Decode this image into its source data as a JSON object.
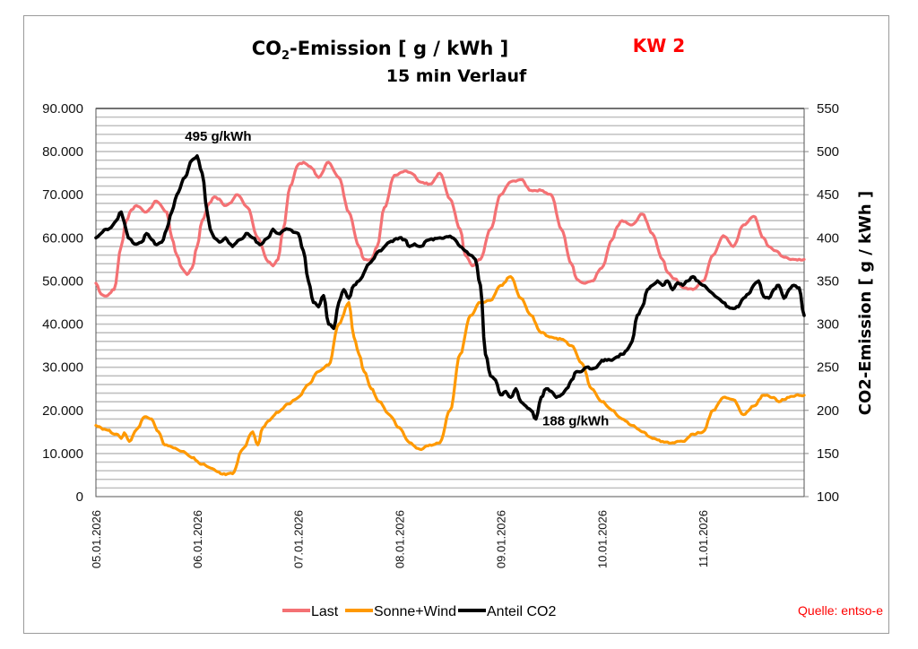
{
  "chart_data": {
    "type": "line",
    "title": "CO2-Emission [ g / kWh ]",
    "title_parts": {
      "prefix": "CO",
      "subscript": "2",
      "suffix": "-Emission [ g / kWh ]"
    },
    "week_label": "KW 2",
    "subtitle": "15 min Verlauf",
    "xlabel": "",
    "ylabel_left": "",
    "ylabel_right": "CO2-Emission [ g / kWh ]",
    "x_categories": [
      "05.01.2026",
      "06.01.2026",
      "07.01.2026",
      "08.01.2026",
      "09.01.2026",
      "10.01.2026",
      "11.01.2026"
    ],
    "x_range_days": [
      0,
      7
    ],
    "ylim_left": [
      0,
      90000
    ],
    "yticks_left": [
      "0",
      "10.000",
      "20.000",
      "30.000",
      "40.000",
      "50.000",
      "60.000",
      "70.000",
      "80.000",
      "90.000"
    ],
    "ylim_right": [
      100,
      550
    ],
    "yticks_right": [
      "100",
      "150",
      "200",
      "250",
      "300",
      "350",
      "400",
      "450",
      "500",
      "550"
    ],
    "grid": true,
    "legend_position": "bottom",
    "source": "Quelle: entso-e",
    "annotations": [
      {
        "text": "495 g/kWh",
        "series": "Anteil CO2",
        "x_day": 1.12,
        "value": 495
      },
      {
        "text": "188 g/kWh",
        "series": "Anteil CO2",
        "x_day": 4.6,
        "value": 188
      }
    ],
    "series": [
      {
        "name": "Last",
        "axis": "left",
        "color": "#f47174",
        "x_days": [
          0.0,
          0.05,
          0.1,
          0.18,
          0.25,
          0.3,
          0.35,
          0.4,
          0.5,
          0.6,
          0.7,
          0.75,
          0.8,
          0.85,
          0.9,
          0.95,
          1.0,
          1.05,
          1.12,
          1.17,
          1.22,
          1.27,
          1.32,
          1.4,
          1.5,
          1.6,
          1.7,
          1.75,
          1.8,
          1.85,
          1.92,
          2.0,
          2.05,
          2.12,
          2.2,
          2.3,
          2.4,
          2.5,
          2.6,
          2.65,
          2.72,
          2.78,
          2.85,
          2.95,
          3.05,
          3.12,
          3.2,
          3.3,
          3.4,
          3.5,
          3.6,
          3.65,
          3.72,
          3.8,
          3.9,
          4.0,
          4.1,
          4.2,
          4.3,
          4.4,
          4.5,
          4.6,
          4.7,
          4.75,
          4.82,
          4.9,
          5.0,
          5.1,
          5.15,
          5.2,
          5.3,
          5.4,
          5.5,
          5.6,
          5.65,
          5.72,
          5.8,
          5.9,
          6.0,
          6.1,
          6.2,
          6.3,
          6.4,
          6.5,
          6.6,
          6.65,
          6.72,
          6.8,
          6.9,
          7.0
        ],
        "values": [
          49500,
          47000,
          46500,
          48000,
          58000,
          64000,
          66500,
          67500,
          66000,
          68500,
          66000,
          60000,
          56000,
          53000,
          51500,
          53000,
          58000,
          64000,
          68000,
          69500,
          69000,
          67500,
          68000,
          70000,
          67000,
          60000,
          54500,
          53500,
          55000,
          62000,
          72000,
          77000,
          77500,
          76500,
          74000,
          77500,
          74000,
          66000,
          58000,
          55000,
          55000,
          58000,
          67000,
          74500,
          75500,
          75000,
          73000,
          72500,
          75000,
          69000,
          62000,
          56000,
          53500,
          55000,
          62000,
          70000,
          73000,
          73500,
          71000,
          71000,
          70000,
          62000,
          54000,
          50500,
          49500,
          50000,
          53000,
          59500,
          62500,
          64000,
          63000,
          65500,
          61000,
          55000,
          52000,
          50500,
          48500,
          48000,
          50000,
          56000,
          60500,
          58000,
          63000,
          65000,
          60000,
          58000,
          57000,
          55500,
          55000,
          55000
        ]
      },
      {
        "name": "Sonne+Wind",
        "axis": "left",
        "color": "#ff9900",
        "x_days": [
          0.0,
          0.1,
          0.2,
          0.28,
          0.32,
          0.4,
          0.45,
          0.5,
          0.55,
          0.62,
          0.68,
          0.75,
          0.8,
          0.88,
          0.95,
          1.0,
          1.1,
          1.2,
          1.3,
          1.4,
          1.5,
          1.55,
          1.62,
          1.7,
          1.75,
          1.8,
          1.9,
          2.0,
          2.1,
          2.2,
          2.3,
          2.4,
          2.5,
          2.55,
          2.6,
          2.65,
          2.72,
          2.8,
          2.9,
          3.0,
          3.1,
          3.2,
          3.3,
          3.4,
          3.5,
          3.6,
          3.7,
          3.8,
          3.9,
          4.0,
          4.1,
          4.2,
          4.3,
          4.4,
          4.5,
          4.6,
          4.7,
          4.8,
          4.9,
          5.0,
          5.1,
          5.2,
          5.3,
          5.4,
          5.5,
          5.6,
          5.7,
          5.8,
          5.9,
          6.0,
          6.1,
          6.2,
          6.3,
          6.4,
          6.5,
          6.6,
          6.7,
          6.8,
          6.9,
          7.0
        ],
        "values": [
          16500,
          15500,
          14500,
          13500,
          14800,
          12800,
          15500,
          18500,
          18000,
          15000,
          12000,
          11500,
          10500,
          9000,
          7500,
          6500,
          5200,
          5300,
          11000,
          15000,
          12000,
          16000,
          17500,
          19500,
          21500,
          23000,
          26000,
          29000,
          30500,
          40000,
          45000,
          37000,
          33000,
          29000,
          25000,
          22000,
          19000,
          16000,
          12500,
          11000,
          12000,
          12500,
          20000,
          33000,
          42000,
          45000,
          45500,
          49000,
          51000,
          46000,
          42000,
          38000,
          37000,
          36500,
          35000,
          31000,
          25000,
          22000,
          20000,
          18000,
          16500,
          15000,
          13500,
          12800,
          12500,
          12800,
          14500,
          15000,
          20000,
          23000,
          22500,
          19000,
          21000,
          23500,
          23000,
          22000,
          22500,
          23000,
          23500,
          23500
        ],
        "x_days_override": [
          0.0,
          0.1,
          0.2,
          0.25,
          0.28,
          0.33,
          0.4,
          0.48,
          0.55,
          0.62,
          0.68,
          0.75,
          0.85,
          0.95,
          1.05,
          1.15,
          1.25,
          1.35,
          1.45,
          1.55,
          1.6,
          1.65,
          1.7,
          1.8,
          1.9,
          2.0,
          2.1,
          2.2,
          2.3,
          2.4,
          2.5,
          2.55,
          2.6,
          2.65,
          2.72,
          2.8,
          2.9,
          3.0,
          3.1,
          3.2,
          3.3,
          3.4,
          3.5,
          3.6,
          3.7,
          3.8,
          3.9,
          4.0,
          4.1,
          4.2,
          4.3,
          4.4,
          4.5,
          4.6,
          4.7,
          4.8,
          4.9,
          5.0,
          5.1,
          5.2,
          5.3,
          5.4,
          5.5,
          5.6,
          5.7,
          5.8,
          5.9,
          6.0,
          6.1,
          6.2,
          6.3,
          6.4,
          6.5,
          6.6,
          6.7,
          6.75,
          6.8,
          6.85,
          6.92,
          7.0
        ]
      },
      {
        "name": "Anteil CO2",
        "axis": "right",
        "color": "#000000",
        "x_days": [
          0.0,
          0.05,
          0.1,
          0.15,
          0.2,
          0.25,
          0.28,
          0.32,
          0.38,
          0.45,
          0.5,
          0.55,
          0.6,
          0.65,
          0.7,
          0.75,
          0.8,
          0.88,
          0.95,
          1.0,
          1.05,
          1.1,
          1.13,
          1.17,
          1.22,
          1.28,
          1.35,
          1.42,
          1.5,
          1.55,
          1.62,
          1.7,
          1.75,
          1.8,
          1.9,
          2.0,
          2.05,
          2.1,
          2.15,
          2.2,
          2.25,
          2.3,
          2.35,
          2.4,
          2.45,
          2.5,
          2.55,
          2.6,
          2.7,
          2.8,
          2.9,
          3.0,
          3.05,
          3.1,
          3.15,
          3.2,
          3.3,
          3.4,
          3.5,
          3.55,
          3.6,
          3.65,
          3.7,
          3.75,
          3.8,
          3.85,
          3.9,
          3.95,
          4.0,
          4.05,
          4.1,
          4.15,
          4.2,
          4.25,
          4.3,
          4.35,
          4.4,
          4.45,
          4.5,
          4.55,
          4.6,
          4.65,
          4.7,
          4.75,
          4.8,
          4.85,
          4.9,
          4.95,
          5.0,
          5.05,
          5.1,
          5.15,
          5.2,
          5.25,
          5.3,
          5.35,
          5.4,
          5.45,
          5.5,
          5.55,
          5.6,
          5.65,
          5.7,
          5.75,
          5.8,
          5.85,
          5.9,
          5.95,
          6.0,
          6.05,
          6.1,
          6.15,
          6.2,
          6.25,
          6.3,
          6.35,
          6.4,
          6.45,
          6.5,
          6.55,
          6.6,
          6.65,
          6.7,
          6.75,
          6.8,
          6.85,
          6.9,
          6.95,
          7.0
        ],
        "values": [
          400,
          405,
          410,
          412,
          420,
          430,
          418,
          400,
          393,
          395,
          405,
          398,
          392,
          395,
          410,
          430,
          450,
          470,
          490,
          495,
          475,
          430,
          410,
          400,
          395,
          400,
          390,
          398,
          405,
          400,
          392,
          400,
          410,
          405,
          410,
          405,
          385,
          350,
          325,
          320,
          333,
          300,
          295,
          325,
          340,
          330,
          345,
          350,
          370,
          385,
          395,
          400,
          398,
          390,
          393,
          390,
          398,
          400,
          402,
          398,
          390,
          385,
          380,
          375,
          345,
          265,
          240,
          235,
          218,
          222,
          215,
          225,
          210,
          205,
          200,
          190,
          215,
          225,
          222,
          215,
          218,
          225,
          235,
          245,
          245,
          250,
          248,
          250,
          258,
          258,
          258,
          262,
          265,
          270,
          280,
          310,
          320,
          340,
          345,
          350,
          345,
          350,
          340,
          348,
          345,
          350,
          355,
          350,
          345,
          340,
          335,
          330,
          325,
          320,
          318,
          320,
          330,
          335,
          345,
          350,
          332,
          330,
          340,
          345,
          330,
          340,
          345,
          342,
          310
        ]
      }
    ]
  },
  "legend": {
    "items": [
      {
        "label": "Last",
        "color": "#f47174"
      },
      {
        "label": "Sonne+Wind",
        "color": "#ff9900"
      },
      {
        "label": "Anteil CO2",
        "color": "#000000"
      }
    ]
  },
  "accent_colors": {
    "week_label": "#ff0000",
    "source": "#ff0000"
  }
}
